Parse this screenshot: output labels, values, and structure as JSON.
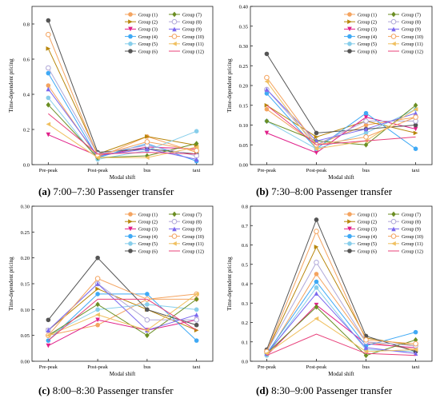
{
  "figure": {
    "captions": [
      {
        "letter": "(a)",
        "text": "7:00–7:30 Passenger transfer"
      },
      {
        "letter": "(b)",
        "text": "7:30–8:00 Passenger transfer"
      },
      {
        "letter": "(c)",
        "text": "8:00–8:30 Passenger transfer"
      },
      {
        "letter": "(d)",
        "text": "8:30–9:00 Passenger transfer"
      }
    ]
  },
  "series_styles": [
    {
      "name": "Group (1)",
      "color": "#F4A460",
      "marker": "circle"
    },
    {
      "name": "Group (2)",
      "color": "#B8860B",
      "marker": "triangle-right"
    },
    {
      "name": "Group (3)",
      "color": "#E0218A",
      "marker": "triangle-down"
    },
    {
      "name": "Group (4)",
      "color": "#3FA9F5",
      "marker": "circle"
    },
    {
      "name": "Group (5)",
      "color": "#87CEEB",
      "marker": "circle"
    },
    {
      "name": "Group (6)",
      "color": "#555555",
      "marker": "circle"
    },
    {
      "name": "Group (7)",
      "color": "#6B8E23",
      "marker": "diamond"
    },
    {
      "name": "Group (8)",
      "color": "#B0A8D8",
      "marker": "circle-open"
    },
    {
      "name": "Group (9)",
      "color": "#7B68EE",
      "marker": "triangle-up"
    },
    {
      "name": "Group (10)",
      "color": "#F4A460",
      "marker": "circle-open"
    },
    {
      "name": "Group (11)",
      "color": "#F0C060",
      "marker": "triangle-left"
    },
    {
      "name": "Group (12)",
      "color": "#E8407A",
      "marker": "line"
    }
  ],
  "chart_data": [
    {
      "type": "line",
      "title": "",
      "xlabel": "Modal shift",
      "ylabel": "Time-dependent pricing",
      "categories": [
        "Pre-peak",
        "Post-peak",
        "bus",
        "taxi"
      ],
      "ylim": [
        0,
        0.9
      ],
      "yticks": [
        "0.0",
        "0.2",
        "0.4",
        "0.6",
        "0.8"
      ],
      "ytick_values": [
        0,
        0.2,
        0.4,
        0.6,
        0.8
      ],
      "legend": "top-right",
      "series": [
        {
          "name": "Group (1)",
          "values": [
            0.45,
            0.04,
            0.16,
            0.07
          ]
        },
        {
          "name": "Group (2)",
          "values": [
            0.66,
            0.06,
            0.16,
            0.11
          ]
        },
        {
          "name": "Group (3)",
          "values": [
            0.17,
            0.05,
            0.1,
            0.09
          ]
        },
        {
          "name": "Group (4)",
          "values": [
            0.52,
            0.04,
            0.12,
            0.02
          ]
        },
        {
          "name": "Group (5)",
          "values": [
            0.38,
            0.03,
            0.08,
            0.19
          ]
        },
        {
          "name": "Group (6)",
          "values": [
            0.82,
            0.07,
            0.09,
            0.06
          ]
        },
        {
          "name": "Group (7)",
          "values": [
            0.34,
            0.04,
            0.05,
            0.12
          ]
        },
        {
          "name": "Group (8)",
          "values": [
            0.55,
            0.06,
            0.11,
            0.05
          ]
        },
        {
          "name": "Group (9)",
          "values": [
            0.43,
            0.05,
            0.09,
            0.03
          ]
        },
        {
          "name": "Group (10)",
          "values": [
            0.74,
            0.05,
            0.13,
            0.08
          ]
        },
        {
          "name": "Group (11)",
          "values": [
            0.23,
            0.04,
            0.04,
            0.1
          ]
        },
        {
          "name": "Group (12)",
          "values": [
            0.29,
            0.06,
            0.07,
            0.06
          ]
        }
      ]
    },
    {
      "type": "line",
      "title": "",
      "xlabel": "Modal shift",
      "ylabel": "Time-dependent pricing",
      "categories": [
        "Pre-peak",
        "Post-peak",
        "bus",
        "taxi"
      ],
      "ylim": [
        0,
        0.4
      ],
      "yticks": [
        "0.00",
        "0.05",
        "0.10",
        "0.15",
        "0.20",
        "0.25",
        "0.30",
        "0.35",
        "0.40"
      ],
      "ytick_values": [
        0,
        0.05,
        0.1,
        0.15,
        0.2,
        0.25,
        0.3,
        0.35,
        0.4
      ],
      "legend": "top-right",
      "series": [
        {
          "name": "Group (1)",
          "values": [
            0.14,
            0.05,
            0.1,
            0.12
          ]
        },
        {
          "name": "Group (2)",
          "values": [
            0.15,
            0.07,
            0.11,
            0.08
          ]
        },
        {
          "name": "Group (3)",
          "values": [
            0.08,
            0.03,
            0.12,
            0.09
          ]
        },
        {
          "name": "Group (4)",
          "values": [
            0.18,
            0.04,
            0.13,
            0.04
          ]
        },
        {
          "name": "Group (5)",
          "values": [
            0.11,
            0.04,
            0.08,
            0.14
          ]
        },
        {
          "name": "Group (6)",
          "values": [
            0.28,
            0.08,
            0.09,
            0.1
          ]
        },
        {
          "name": "Group (7)",
          "values": [
            0.11,
            0.06,
            0.05,
            0.15
          ]
        },
        {
          "name": "Group (8)",
          "values": [
            0.19,
            0.05,
            0.11,
            0.11
          ]
        },
        {
          "name": "Group (9)",
          "values": [
            0.19,
            0.06,
            0.09,
            0.13
          ]
        },
        {
          "name": "Group (10)",
          "values": [
            0.22,
            0.05,
            0.07,
            0.12
          ]
        },
        {
          "name": "Group (11)",
          "values": [
            0.21,
            0.04,
            0.06,
            0.14
          ]
        },
        {
          "name": "Group (12)",
          "values": [
            0.15,
            0.05,
            0.06,
            0.07
          ]
        }
      ]
    },
    {
      "type": "line",
      "title": "",
      "xlabel": "Modal shift",
      "ylabel": "Time-dependent pricing",
      "categories": [
        "Pre-peak",
        "Post-peak",
        "bus",
        "taxi"
      ],
      "ylim": [
        0,
        0.3
      ],
      "yticks": [
        "0.00",
        "0.05",
        "0.10",
        "0.15",
        "0.20",
        "0.25",
        "0.30"
      ],
      "ytick_values": [
        0,
        0.05,
        0.1,
        0.15,
        0.2,
        0.25,
        0.3
      ],
      "legend": "top-right",
      "series": [
        {
          "name": "Group (1)",
          "values": [
            0.05,
            0.07,
            0.12,
            0.12
          ]
        },
        {
          "name": "Group (2)",
          "values": [
            0.06,
            0.14,
            0.1,
            0.06
          ]
        },
        {
          "name": "Group (3)",
          "values": [
            0.03,
            0.08,
            0.06,
            0.08
          ]
        },
        {
          "name": "Group (4)",
          "values": [
            0.04,
            0.13,
            0.13,
            0.04
          ]
        },
        {
          "name": "Group (5)",
          "values": [
            0.05,
            0.1,
            0.11,
            0.1
          ]
        },
        {
          "name": "Group (6)",
          "values": [
            0.08,
            0.2,
            0.1,
            0.07
          ]
        },
        {
          "name": "Group (7)",
          "values": [
            0.05,
            0.11,
            0.05,
            0.12
          ]
        },
        {
          "name": "Group (8)",
          "values": [
            0.06,
            0.15,
            0.08,
            0.08
          ]
        },
        {
          "name": "Group (9)",
          "values": [
            0.06,
            0.15,
            0.06,
            0.09
          ]
        },
        {
          "name": "Group (10)",
          "values": [
            0.05,
            0.16,
            0.12,
            0.13
          ]
        },
        {
          "name": "Group (11)",
          "values": [
            0.05,
            0.09,
            0.06,
            0.13
          ]
        },
        {
          "name": "Group (12)",
          "values": [
            0.04,
            0.12,
            0.12,
            0.06
          ]
        }
      ]
    },
    {
      "type": "line",
      "title": "",
      "xlabel": "Modal shift",
      "ylabel": "Time-dependent pricing",
      "categories": [
        "Pre-peak",
        "Post-peak",
        "bus",
        "taxi"
      ],
      "ylim": [
        0,
        0.8
      ],
      "yticks": [
        "0.0",
        "0.1",
        "0.2",
        "0.3",
        "0.4",
        "0.5",
        "0.6",
        "0.7",
        "0.8"
      ],
      "ytick_values": [
        0,
        0.1,
        0.2,
        0.3,
        0.4,
        0.5,
        0.6,
        0.7,
        0.8
      ],
      "legend": "top-right",
      "series": [
        {
          "name": "Group (1)",
          "values": [
            0.03,
            0.45,
            0.1,
            0.06
          ]
        },
        {
          "name": "Group (2)",
          "values": [
            0.05,
            0.59,
            0.12,
            0.08
          ]
        },
        {
          "name": "Group (3)",
          "values": [
            0.03,
            0.29,
            0.09,
            0.07
          ]
        },
        {
          "name": "Group (4)",
          "values": [
            0.04,
            0.41,
            0.08,
            0.15
          ]
        },
        {
          "name": "Group (5)",
          "values": [
            0.03,
            0.38,
            0.06,
            0.05
          ]
        },
        {
          "name": "Group (6)",
          "values": [
            0.06,
            0.73,
            0.13,
            0.05
          ]
        },
        {
          "name": "Group (7)",
          "values": [
            0.04,
            0.28,
            0.03,
            0.11
          ]
        },
        {
          "name": "Group (8)",
          "values": [
            0.05,
            0.51,
            0.1,
            0.08
          ]
        },
        {
          "name": "Group (9)",
          "values": [
            0.04,
            0.35,
            0.07,
            0.04
          ]
        },
        {
          "name": "Group (10)",
          "values": [
            0.05,
            0.67,
            0.11,
            0.09
          ]
        },
        {
          "name": "Group (11)",
          "values": [
            0.04,
            0.22,
            0.05,
            0.06
          ]
        },
        {
          "name": "Group (12)",
          "values": [
            0.03,
            0.14,
            0.04,
            0.03
          ]
        }
      ]
    }
  ]
}
